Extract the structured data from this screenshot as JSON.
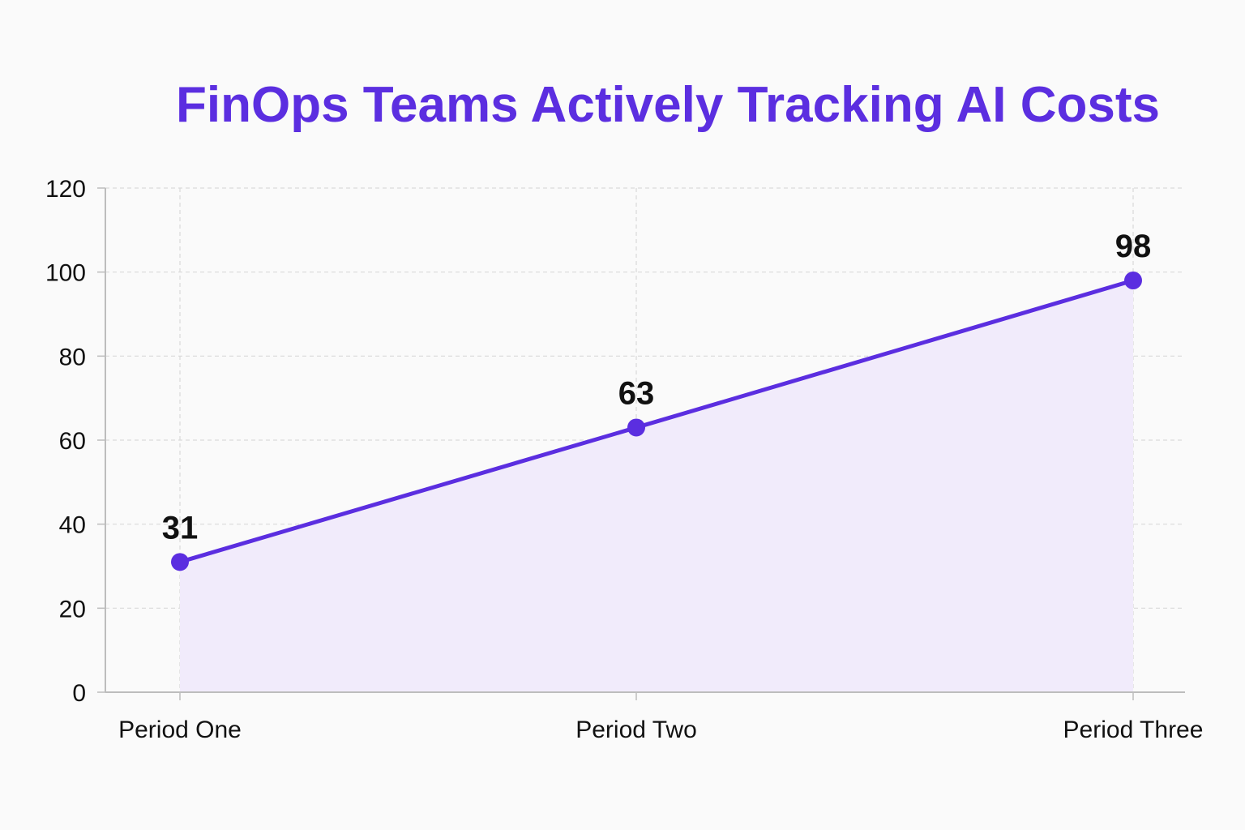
{
  "chart_data": {
    "type": "area",
    "title": "FinOps Teams Actively Tracking AI Costs",
    "xlabel": "",
    "ylabel": "",
    "categories": [
      "Period One",
      "Period Two",
      "Period Three"
    ],
    "series": [
      {
        "values": [
          31,
          63,
          98
        ]
      }
    ],
    "data_labels": [
      "31",
      "63",
      "98"
    ],
    "ylim": [
      0,
      120
    ],
    "yticks": [
      0,
      20,
      40,
      60,
      80,
      100,
      120
    ],
    "grid": true,
    "legend": "none"
  },
  "colors": {
    "line": "#5b2ee0",
    "fill": "#f1ebfb",
    "title": "#5b2ee0",
    "grid": "#d9d9d9",
    "axis": "#bdbdbd"
  }
}
